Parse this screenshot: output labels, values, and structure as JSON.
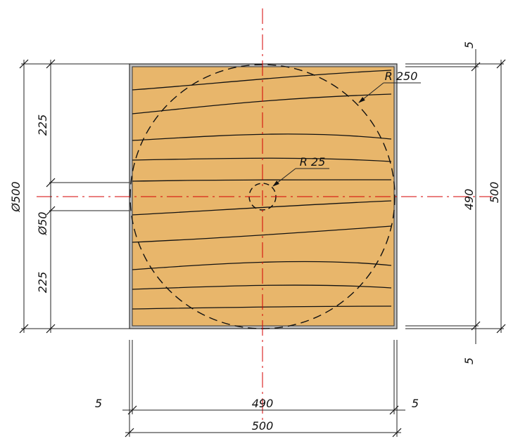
{
  "drawing": {
    "colors": {
      "wood_fill": "#e8b66b",
      "outline": "#333333",
      "frame_fill": "#bfbfbf",
      "centerline": "#d40000",
      "line": "#222222"
    },
    "dimensions": {
      "left_top": "225",
      "left_diameter": "Ø500",
      "left_hole": "Ø50",
      "left_bottom": "225",
      "right_top_gap": "5",
      "right_inner": "490",
      "right_outer": "500",
      "right_bottom_gap": "5",
      "bottom_left_gap": "5",
      "bottom_inner": "490",
      "bottom_right_gap": "5",
      "bottom_outer": "500"
    },
    "callouts": {
      "outer_radius": "R 250",
      "hole_radius": "R 25"
    }
  }
}
